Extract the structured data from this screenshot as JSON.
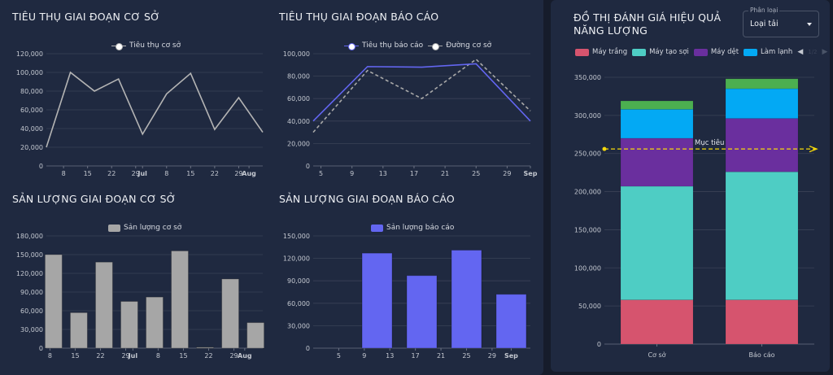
{
  "charts": {
    "base_consumption": {
      "title": "Tiêu thụ giai đoạn cơ sở",
      "chart_data": {
        "type": "line",
        "series": [
          {
            "name": "Tiêu thụ cơ sở",
            "color": "#b4b4b4",
            "x": [
              "Jun 03",
              "Jun 10",
              "Jun 17",
              "Jun 24",
              "Jul 01",
              "Jul 08",
              "Jul 15",
              "Jul 22",
              "Jul 29",
              "Aug 05"
            ],
            "values": [
              20000,
              100000,
              80000,
              93000,
              34000,
              77000,
              99000,
              39000,
              73000,
              36000
            ]
          }
        ],
        "xlim": [
          "Jun 03",
          "Aug 05"
        ],
        "ylim": [
          0,
          120000
        ],
        "yticks": [
          "0",
          "20,000",
          "40,000",
          "60,000",
          "80,000",
          "100,000",
          "120,000"
        ],
        "xticks": [
          {
            "label": "8",
            "date": "Jun 08"
          },
          {
            "label": "15",
            "date": "Jun 15"
          },
          {
            "label": "22",
            "date": "Jun 22"
          },
          {
            "label": "29",
            "date": "Jun 29"
          },
          {
            "label": "Jul",
            "date": "Jul 01",
            "bold": true
          },
          {
            "label": "8",
            "date": "Jul 08"
          },
          {
            "label": "15",
            "date": "Jul 15"
          },
          {
            "label": "22",
            "date": "Jul 22"
          },
          {
            "label": "29",
            "date": "Jul 29"
          },
          {
            "label": "Aug",
            "date": "Aug 01",
            "bold": true
          }
        ],
        "grid": true,
        "legend": "top"
      }
    },
    "report_consumption": {
      "title": "Tiêu thụ giai đoạn báo cáo",
      "chart_data": {
        "type": "line",
        "series": [
          {
            "name": "Tiêu thụ báo cáo",
            "color": "#6366f1",
            "dashed": false,
            "x": [
              "Aug 04",
              "Aug 11",
              "Aug 18",
              "Aug 25",
              "Sep 01"
            ],
            "values": [
              40000,
              88500,
              88000,
              91000,
              40000
            ]
          },
          {
            "name": "Đường cơ sở",
            "color": "#a8a8a8",
            "dashed": true,
            "x": [
              "Aug 04",
              "Aug 11",
              "Aug 18",
              "Aug 25",
              "Sep 01"
            ],
            "values": [
              30000,
              85000,
              60000,
              95000,
              49000
            ]
          }
        ],
        "xlim": [
          "Aug 04",
          "Sep 01"
        ],
        "ylim": [
          0,
          100000
        ],
        "yticks": [
          "0",
          "20,000",
          "40,000",
          "60,000",
          "80,000",
          "100,000"
        ],
        "xticks": [
          {
            "label": "5",
            "date": "Aug 05"
          },
          {
            "label": "9",
            "date": "Aug 09"
          },
          {
            "label": "13",
            "date": "Aug 13"
          },
          {
            "label": "17",
            "date": "Aug 17"
          },
          {
            "label": "21",
            "date": "Aug 21"
          },
          {
            "label": "25",
            "date": "Aug 25"
          },
          {
            "label": "29",
            "date": "Aug 29"
          },
          {
            "label": "Sep",
            "date": "Sep 01",
            "bold": true
          }
        ],
        "grid": true,
        "legend": "top"
      }
    },
    "base_output": {
      "title": "Sản lượng giai đoạn cơ sở",
      "chart_data": {
        "type": "bar",
        "series": [
          {
            "name": "Sản lượng cơ sở",
            "color": "#a6a6a6",
            "x": [
              "Jun 09",
              "Jun 16",
              "Jun 23",
              "Jun 30",
              "Jul 07",
              "Jul 14",
              "Jul 21",
              "Jul 28",
              "Aug 04"
            ],
            "values": [
              150000,
              57000,
              138000,
              75000,
              82000,
              156000,
              1500,
              111000,
              41000
            ]
          }
        ],
        "xlim": [
          "Jun 07",
          "Aug 06"
        ],
        "ylim": [
          0,
          180000
        ],
        "yticks": [
          "0",
          "30,000",
          "60,000",
          "90,000",
          "120,000",
          "150,000",
          "180,000"
        ],
        "xticks": [
          {
            "label": "8",
            "date": "Jun 08"
          },
          {
            "label": "15",
            "date": "Jun 15"
          },
          {
            "label": "22",
            "date": "Jun 22"
          },
          {
            "label": "29",
            "date": "Jun 29"
          },
          {
            "label": "Jul",
            "date": "Jul 01",
            "bold": true
          },
          {
            "label": "8",
            "date": "Jul 08"
          },
          {
            "label": "15",
            "date": "Jul 15"
          },
          {
            "label": "22",
            "date": "Jul 22"
          },
          {
            "label": "29",
            "date": "Jul 29"
          },
          {
            "label": "Aug",
            "date": "Aug 01",
            "bold": true
          }
        ],
        "grid": true,
        "legend": "top"
      }
    },
    "report_output": {
      "title": "Sản lượng giai đoạn báo cáo",
      "chart_data": {
        "type": "bar",
        "series": [
          {
            "name": "Sản lượng báo cáo",
            "color": "#6366f1",
            "x": [
              "Aug 11",
              "Aug 18",
              "Aug 25",
              "Sep 01"
            ],
            "values": [
              127000,
              97000,
              131000,
              72000
            ]
          }
        ],
        "xlim": [
          "Aug 01",
          "Sep 04"
        ],
        "ylim": [
          0,
          150000
        ],
        "yticks": [
          "0",
          "30,000",
          "60,000",
          "90,000",
          "120,000",
          "150,000"
        ],
        "xticks": [
          {
            "label": "5",
            "date": "Aug 05"
          },
          {
            "label": "9",
            "date": "Aug 09"
          },
          {
            "label": "13",
            "date": "Aug 13"
          },
          {
            "label": "17",
            "date": "Aug 17"
          },
          {
            "label": "21",
            "date": "Aug 21"
          },
          {
            "label": "25",
            "date": "Aug 25"
          },
          {
            "label": "29",
            "date": "Aug 29"
          },
          {
            "label": "Sep",
            "date": "Sep 01",
            "bold": true
          }
        ],
        "grid": true,
        "legend": "top"
      }
    },
    "efficiency": {
      "title": "Đồ thị đánh giá hiệu quả năng lượng",
      "select": {
        "label": "Phân loại",
        "value": "Loại tải"
      },
      "legend_page": "1/2",
      "chart_data": {
        "type": "bar",
        "stacked": true,
        "categories": [
          "Cơ sở",
          "Báo cáo"
        ],
        "series": [
          {
            "name": "Máy trắng",
            "color": "#d6546e",
            "values": [
              58000,
              58000
            ]
          },
          {
            "name": "Máy tạo sợi",
            "color": "#4ecdc4",
            "values": [
              149000,
              168000
            ]
          },
          {
            "name": "Máy dệt",
            "color": "#6a2f9e",
            "values": [
              63000,
              70000
            ]
          },
          {
            "name": "Làm lạnh",
            "color": "#03a9f4",
            "values": [
              38000,
              39000
            ]
          },
          {
            "color": "#4caf50",
            "values": [
              11000,
              13000
            ]
          }
        ],
        "target": {
          "label": "Mục tiêu",
          "value": 256000,
          "color": "#f5d90a"
        },
        "ylim": [
          0,
          350000
        ],
        "yticks": [
          "0",
          "50,000",
          "100,000",
          "150,000",
          "200,000",
          "250,000",
          "300,000",
          "350,000"
        ],
        "grid": true,
        "legend": "top"
      }
    }
  }
}
